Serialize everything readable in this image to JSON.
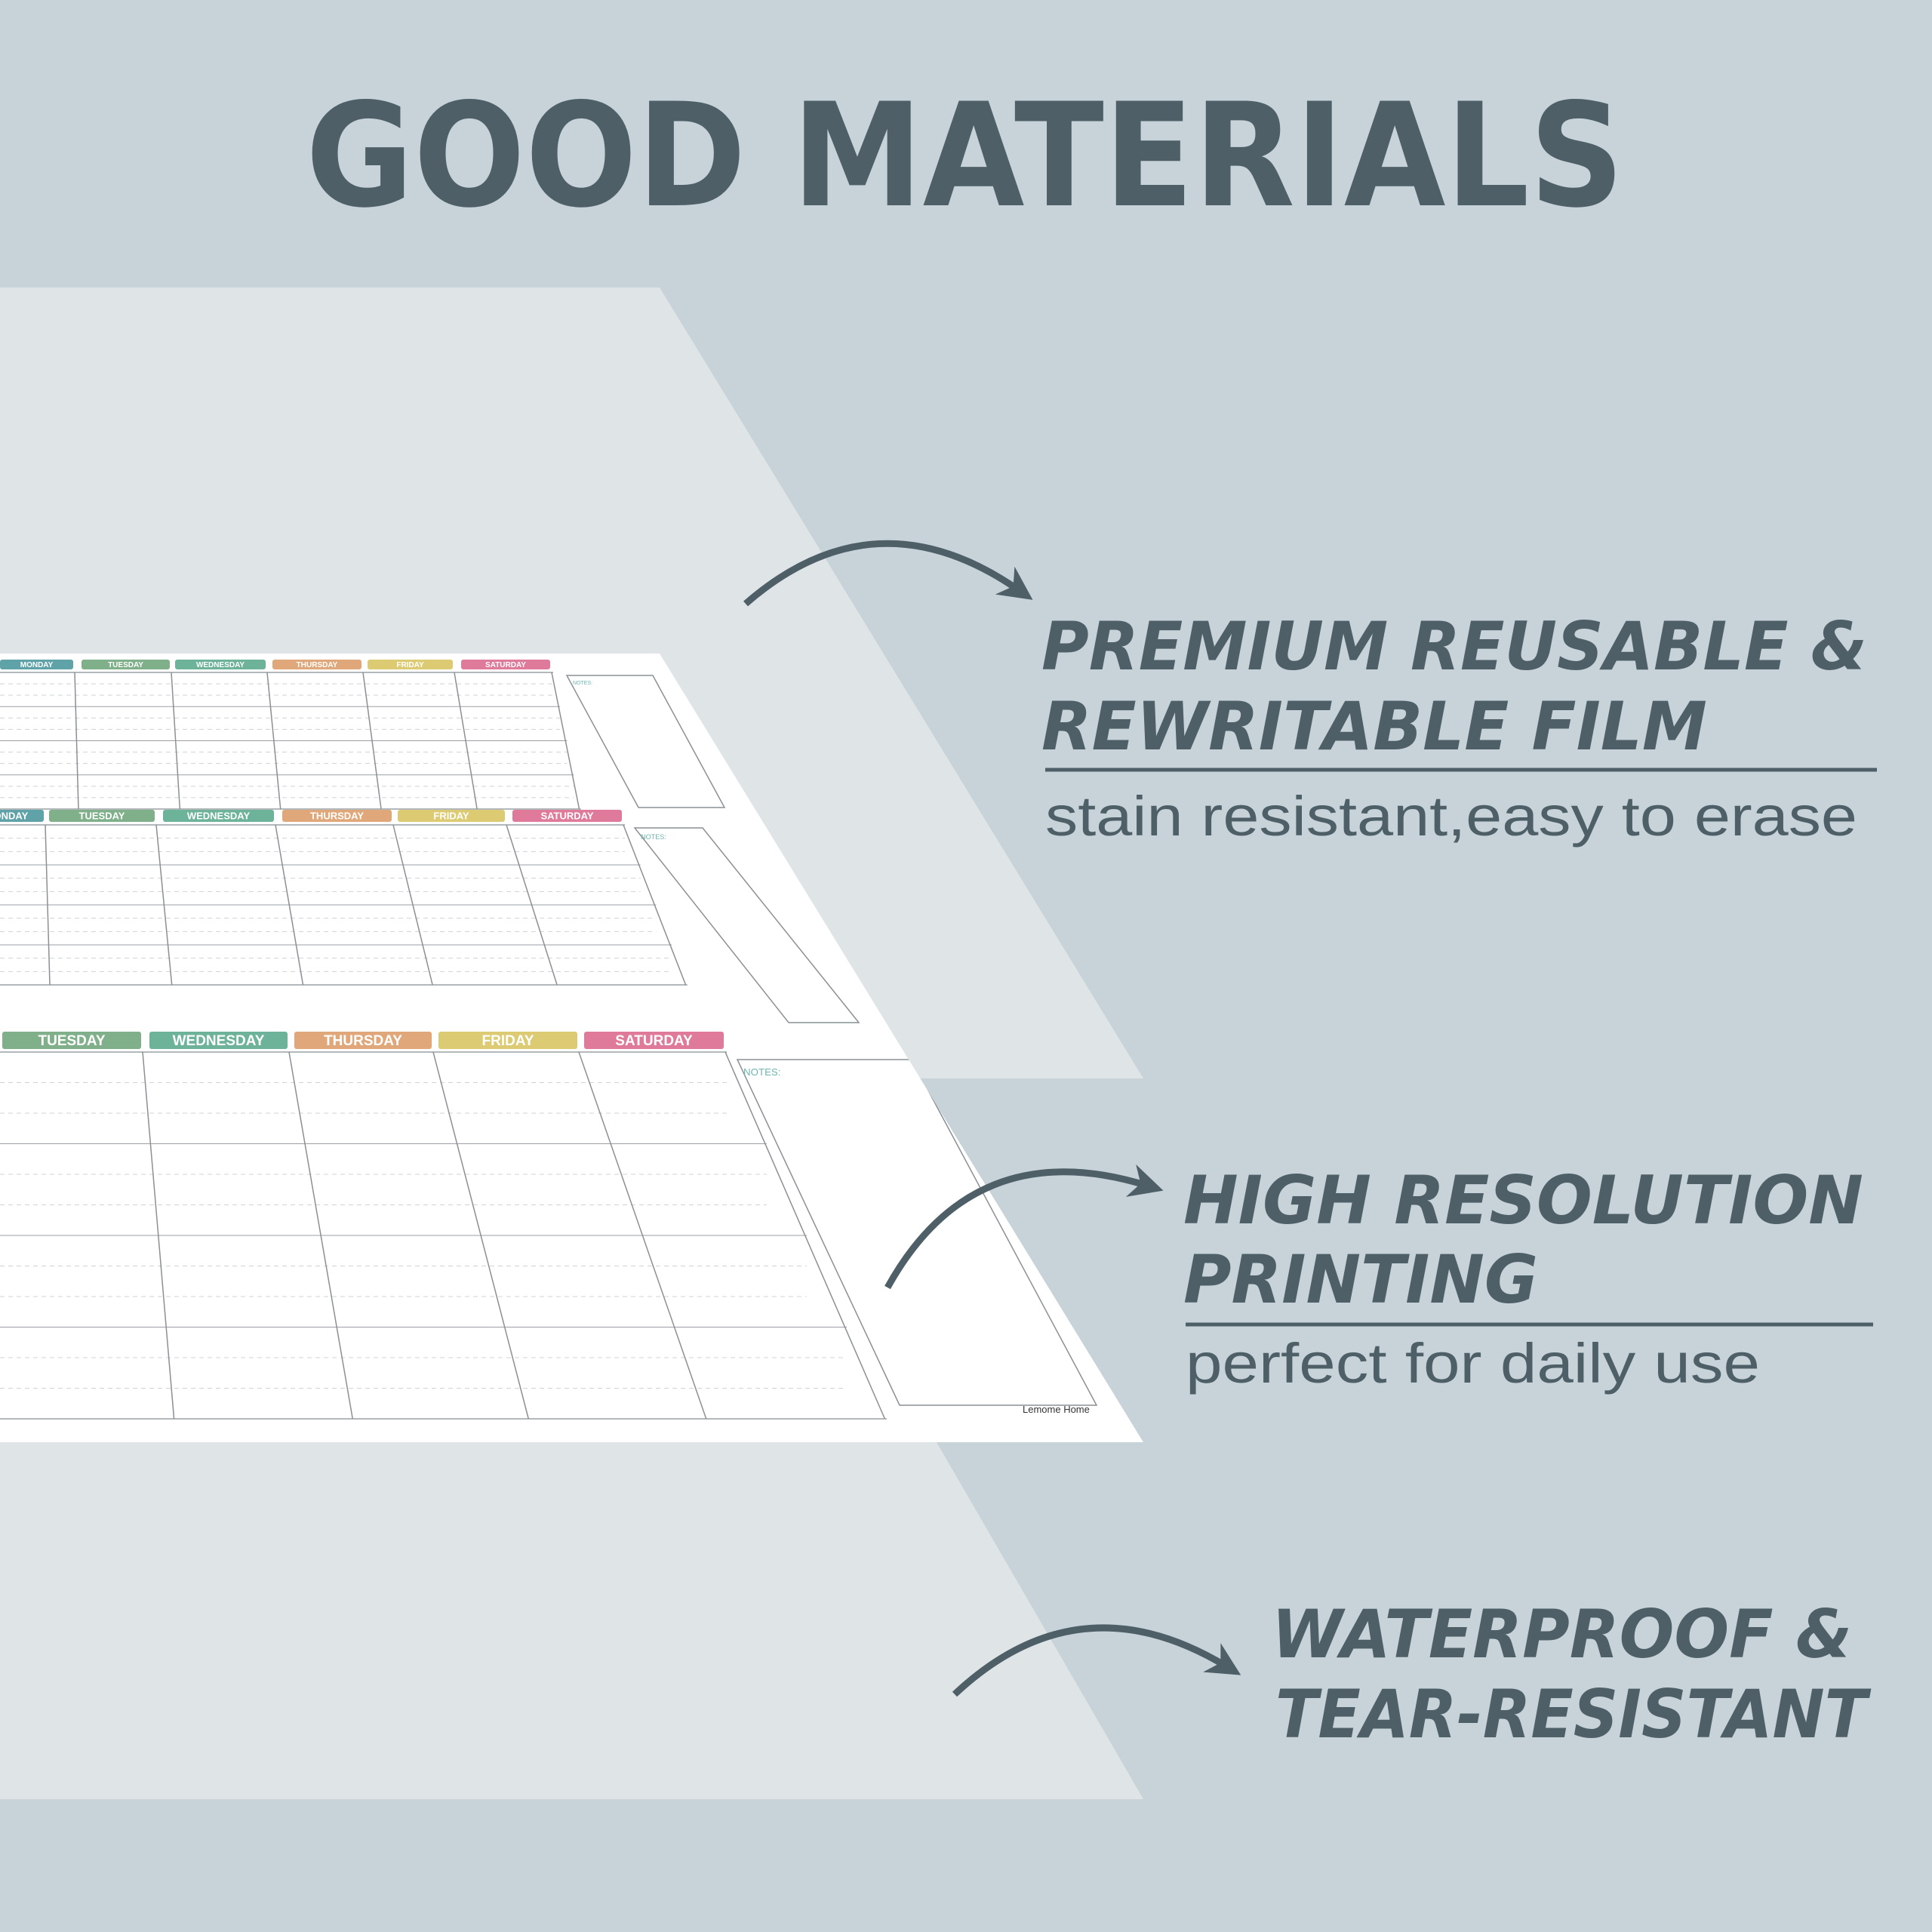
{
  "header": {
    "title": "GOOD MATERIALS"
  },
  "features": [
    {
      "lines": [
        "PREMIUM REUSABLE &",
        "REWRITABLE FILM"
      ],
      "subtitle": "stain resistant,easy to erase"
    },
    {
      "lines": [
        "HIGH RESOLUTION",
        "PRINTING"
      ],
      "subtitle": "perfect for daily use"
    },
    {
      "lines": [
        "WATERPROOF &",
        "TEAR-RESISTANT"
      ]
    }
  ],
  "calendar": {
    "days": [
      "MONDAY",
      "TUESDAY",
      "WEDNESDAY",
      "THURSDAY",
      "FRIDAY",
      "SATURDAY"
    ],
    "notes_label": "NOTES:",
    "brand": "Lemome Home"
  }
}
